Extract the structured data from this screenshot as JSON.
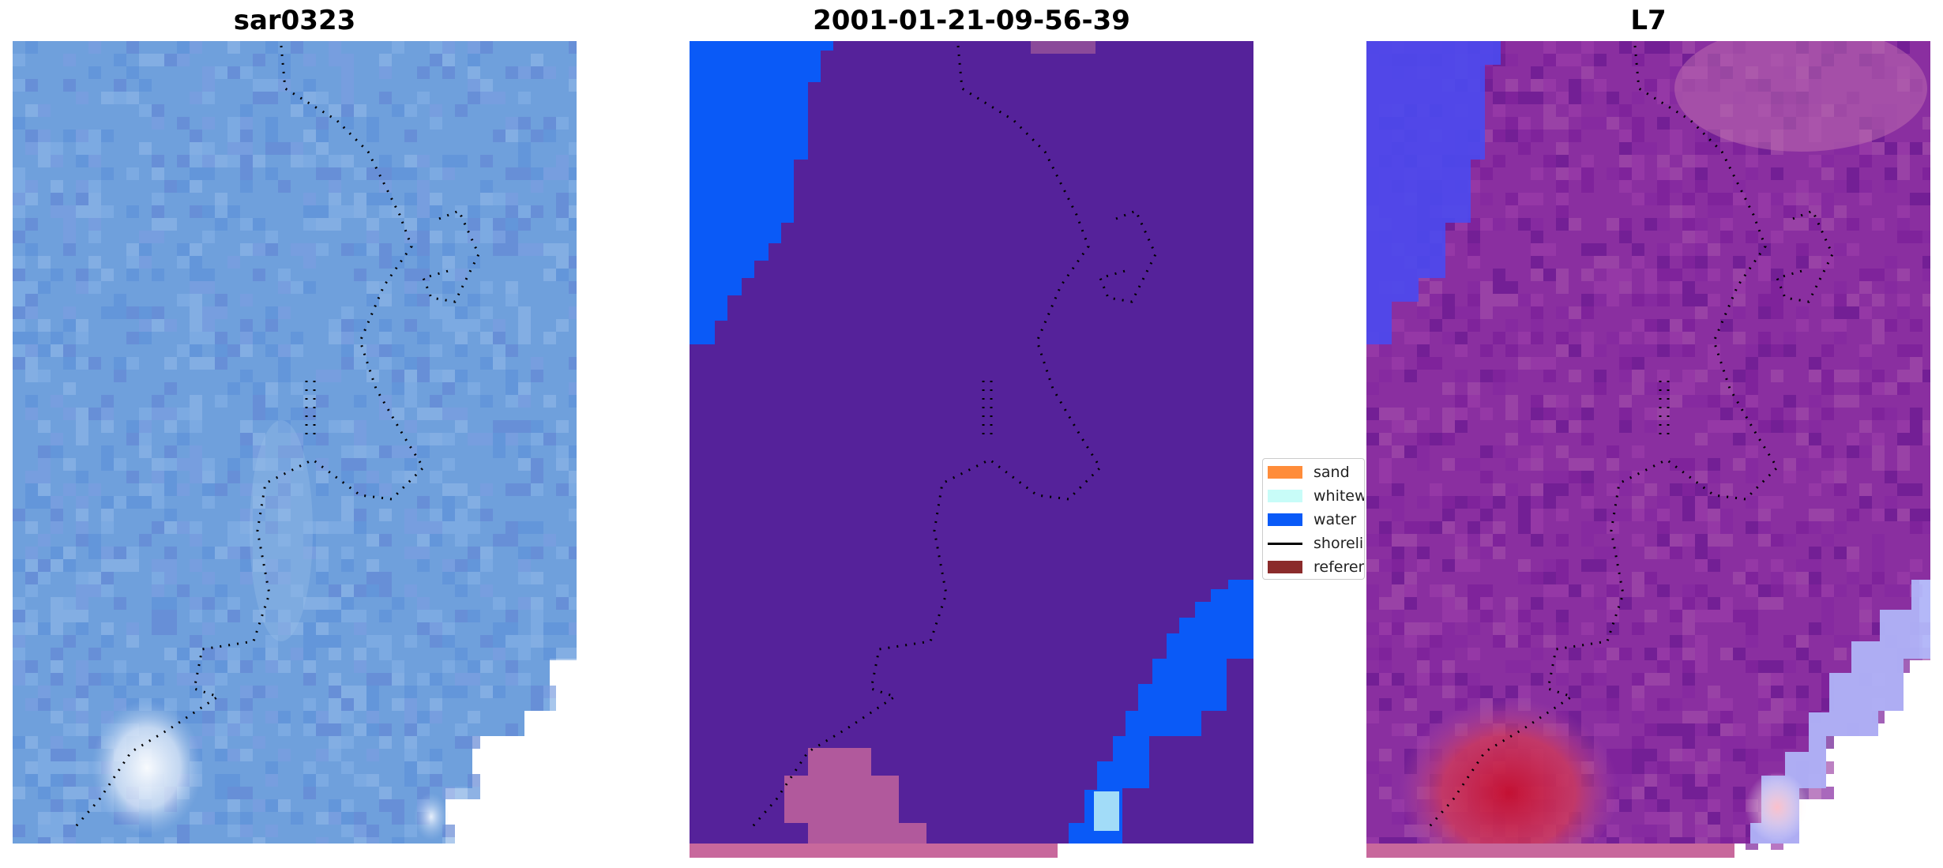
{
  "panels": [
    {
      "title": "sar0323"
    },
    {
      "title": "2001-01-21-09-56-39"
    },
    {
      "title": "L7"
    }
  ],
  "legend": {
    "items": [
      {
        "label": "sand",
        "color": "#ff8c3a",
        "kind": "patch"
      },
      {
        "label": "whitewater",
        "color": "#c8fcf8",
        "kind": "patch"
      },
      {
        "label": "water",
        "color": "#0a5af7",
        "kind": "patch"
      },
      {
        "label": "shoreline",
        "color": "#000000",
        "kind": "line"
      },
      {
        "label": "reference",
        "color": "#8b2b2b",
        "kind": "patch"
      }
    ]
  },
  "colors": {
    "classification_land": "#55229a",
    "classification_water": "#0a5af7",
    "sar_base": "#6fa0dc",
    "l7_base": "#8a2fa0"
  }
}
